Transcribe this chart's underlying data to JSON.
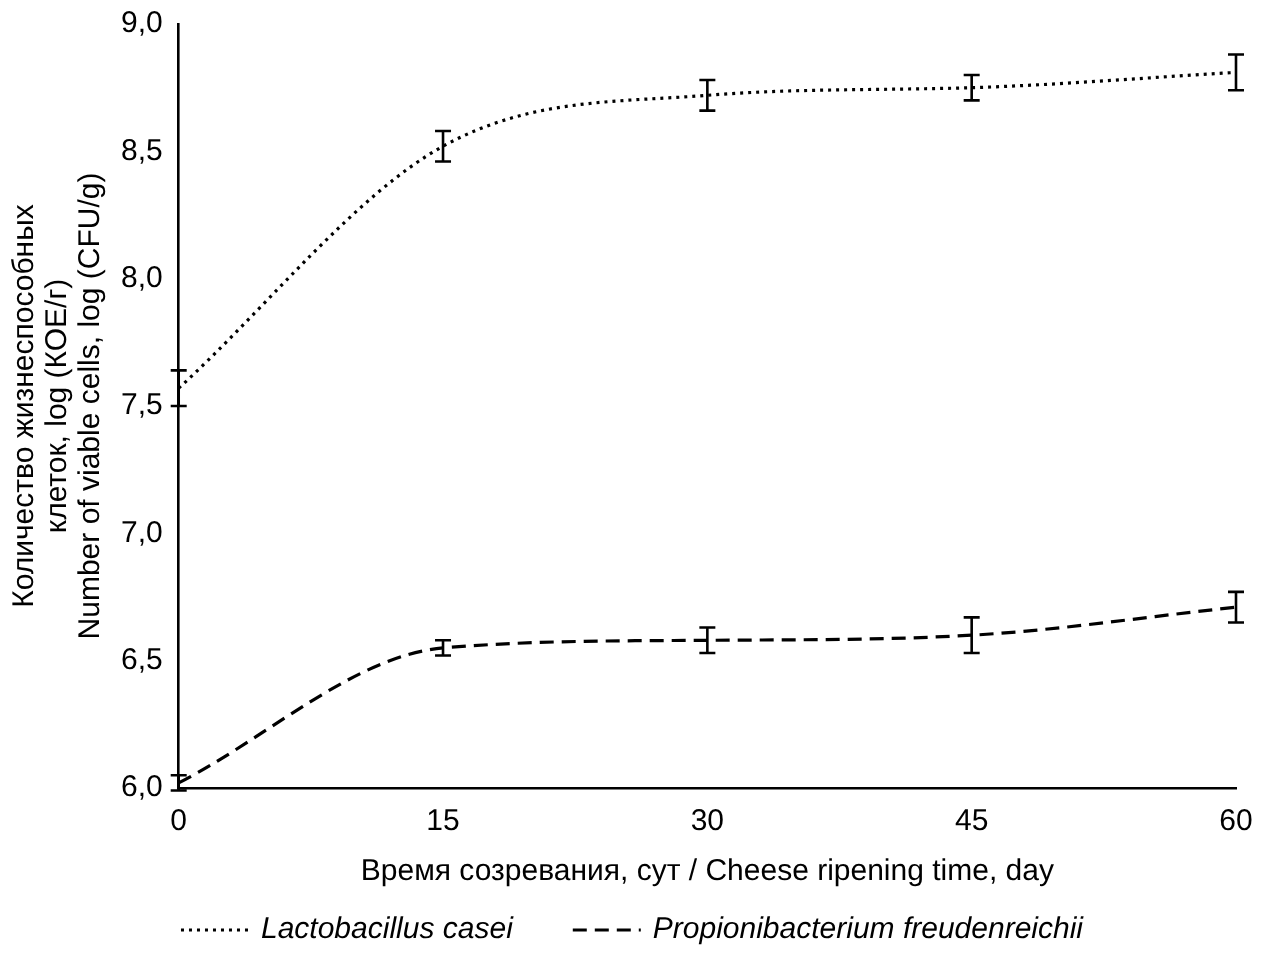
{
  "chart_data": {
    "type": "line",
    "xlabel": "Время созревания, сут / Cheese ripening time, day",
    "ylabel": "Количество жизнеспособных\nклеток, log (КОЕ/г)\nNumber of viable cells, log (CFU/g)",
    "x": [
      0,
      15,
      30,
      45,
      60
    ],
    "series": [
      {
        "name": "Lactobacillus casei",
        "color": "#000000",
        "line_style": "dotted",
        "values": [
          7.57,
          8.52,
          8.72,
          8.75,
          8.81
        ],
        "errors": [
          0.07,
          0.06,
          0.06,
          0.05,
          0.07
        ]
      },
      {
        "name": "Propionibacterium freudenreichii",
        "color": "#000000",
        "line_style": "dashed",
        "values": [
          6.02,
          6.55,
          6.58,
          6.6,
          6.71
        ],
        "errors": [
          0.03,
          0.03,
          0.05,
          0.07,
          0.06
        ]
      }
    ],
    "xlim": [
      0,
      60
    ],
    "xticks": [
      0,
      15,
      30,
      45,
      60
    ],
    "ylim": [
      6,
      9
    ],
    "yticks": [
      {
        "value": 6,
        "label": "6,0"
      },
      {
        "value": 6.5,
        "label": "6,5"
      },
      {
        "value": 7,
        "label": "7,0"
      },
      {
        "value": 7.5,
        "label": "7,5"
      },
      {
        "value": 8,
        "label": "8,0"
      },
      {
        "value": 8.5,
        "label": "8,5"
      },
      {
        "value": 9,
        "label": "9,0"
      }
    ],
    "grid": false,
    "legend": "bottom"
  }
}
